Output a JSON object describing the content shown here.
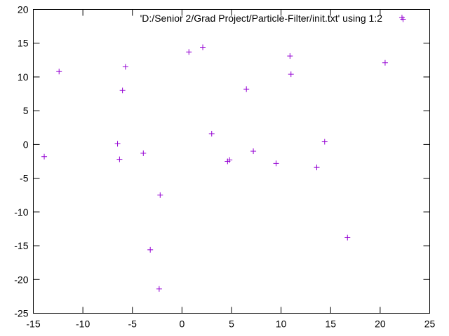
{
  "chart_data": {
    "type": "scatter",
    "marker": "+",
    "marker_color": "#9400D3",
    "axis_color": "#000000",
    "xlim": [
      -15,
      25
    ],
    "ylim": [
      -25,
      20
    ],
    "xticks": [
      -15,
      -10,
      -5,
      0,
      5,
      10,
      15,
      20,
      25
    ],
    "yticks": [
      -25,
      -20,
      -15,
      -10,
      -5,
      0,
      5,
      10,
      15,
      20
    ],
    "grid": false,
    "legend_placement": "top-right",
    "series": [
      {
        "name": "'D:/Senior 2/Grad Project/Particle-Filter/init.txt' using 1:2",
        "points": [
          {
            "x": -13.9,
            "y": -1.8
          },
          {
            "x": -12.4,
            "y": 10.8
          },
          {
            "x": -6.5,
            "y": 0.1
          },
          {
            "x": -6.3,
            "y": -2.2
          },
          {
            "x": -6.0,
            "y": 8.0
          },
          {
            "x": -5.7,
            "y": 11.5
          },
          {
            "x": -3.9,
            "y": -1.3
          },
          {
            "x": -3.2,
            "y": -15.6
          },
          {
            "x": -2.3,
            "y": -21.4
          },
          {
            "x": -2.2,
            "y": -7.5
          },
          {
            "x": 0.7,
            "y": 13.7
          },
          {
            "x": 2.1,
            "y": 14.4
          },
          {
            "x": 3.0,
            "y": 1.6
          },
          {
            "x": 4.6,
            "y": -2.5
          },
          {
            "x": 4.8,
            "y": -2.3
          },
          {
            "x": 6.5,
            "y": 8.2
          },
          {
            "x": 7.2,
            "y": -1.0
          },
          {
            "x": 9.5,
            "y": -2.8
          },
          {
            "x": 10.9,
            "y": 13.1
          },
          {
            "x": 11.0,
            "y": 10.4
          },
          {
            "x": 13.6,
            "y": -3.4
          },
          {
            "x": 14.4,
            "y": 0.4
          },
          {
            "x": 16.7,
            "y": -13.8
          },
          {
            "x": 20.5,
            "y": 12.1
          },
          {
            "x": 22.2,
            "y": 18.8
          }
        ]
      }
    ]
  }
}
